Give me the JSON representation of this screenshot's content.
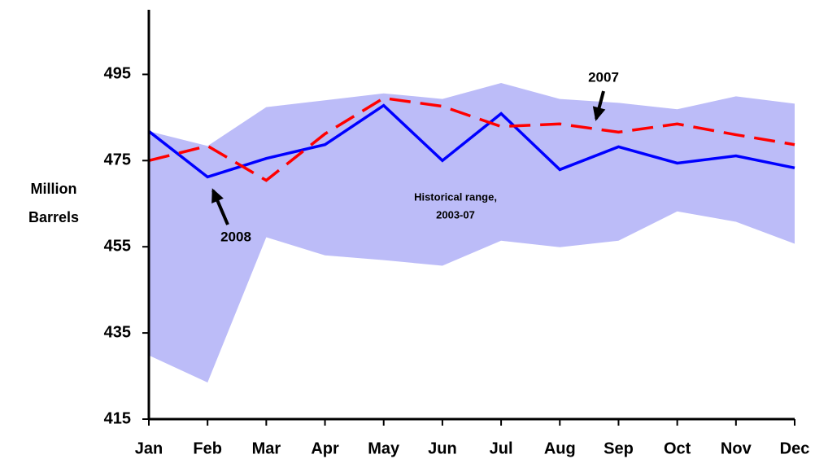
{
  "chart_data": {
    "type": "line",
    "ylabel": [
      "Million",
      "Barrels"
    ],
    "categories": [
      "Jan",
      "Feb",
      "Mar",
      "Apr",
      "May",
      "Jun",
      "Jul",
      "Aug",
      "Sep",
      "Oct",
      "Nov",
      "Dec"
    ],
    "ylim": [
      415,
      510
    ],
    "yticks": [
      415,
      435,
      455,
      475,
      495
    ],
    "range": {
      "label": [
        "Historical range,",
        "2003-07"
      ],
      "color": "#bcbcf8",
      "upper": [
        481.8,
        478.4,
        487.4,
        489,
        490.6,
        489.3,
        493,
        489.3,
        488.4,
        486.9,
        489.9,
        488.2
      ],
      "lower": [
        429.8,
        423.5,
        457.2,
        453,
        451.9,
        450.6,
        456.4,
        454.9,
        456.4,
        463.2,
        460.8,
        455.7
      ]
    },
    "series": [
      {
        "name": "2008",
        "color": "#0000ff",
        "dashed": false,
        "values": [
          481.8,
          471.2,
          475.5,
          478.7,
          487.8,
          475,
          485.9,
          472.9,
          478.2,
          474.4,
          476.1,
          473.3
        ]
      },
      {
        "name": "2007",
        "color": "#ff0000",
        "dashed": true,
        "values": [
          475,
          478.4,
          470.4,
          481.2,
          489.5,
          487.6,
          482.9,
          483.5,
          481.6,
          483.5,
          481,
          478.7
        ]
      }
    ]
  }
}
